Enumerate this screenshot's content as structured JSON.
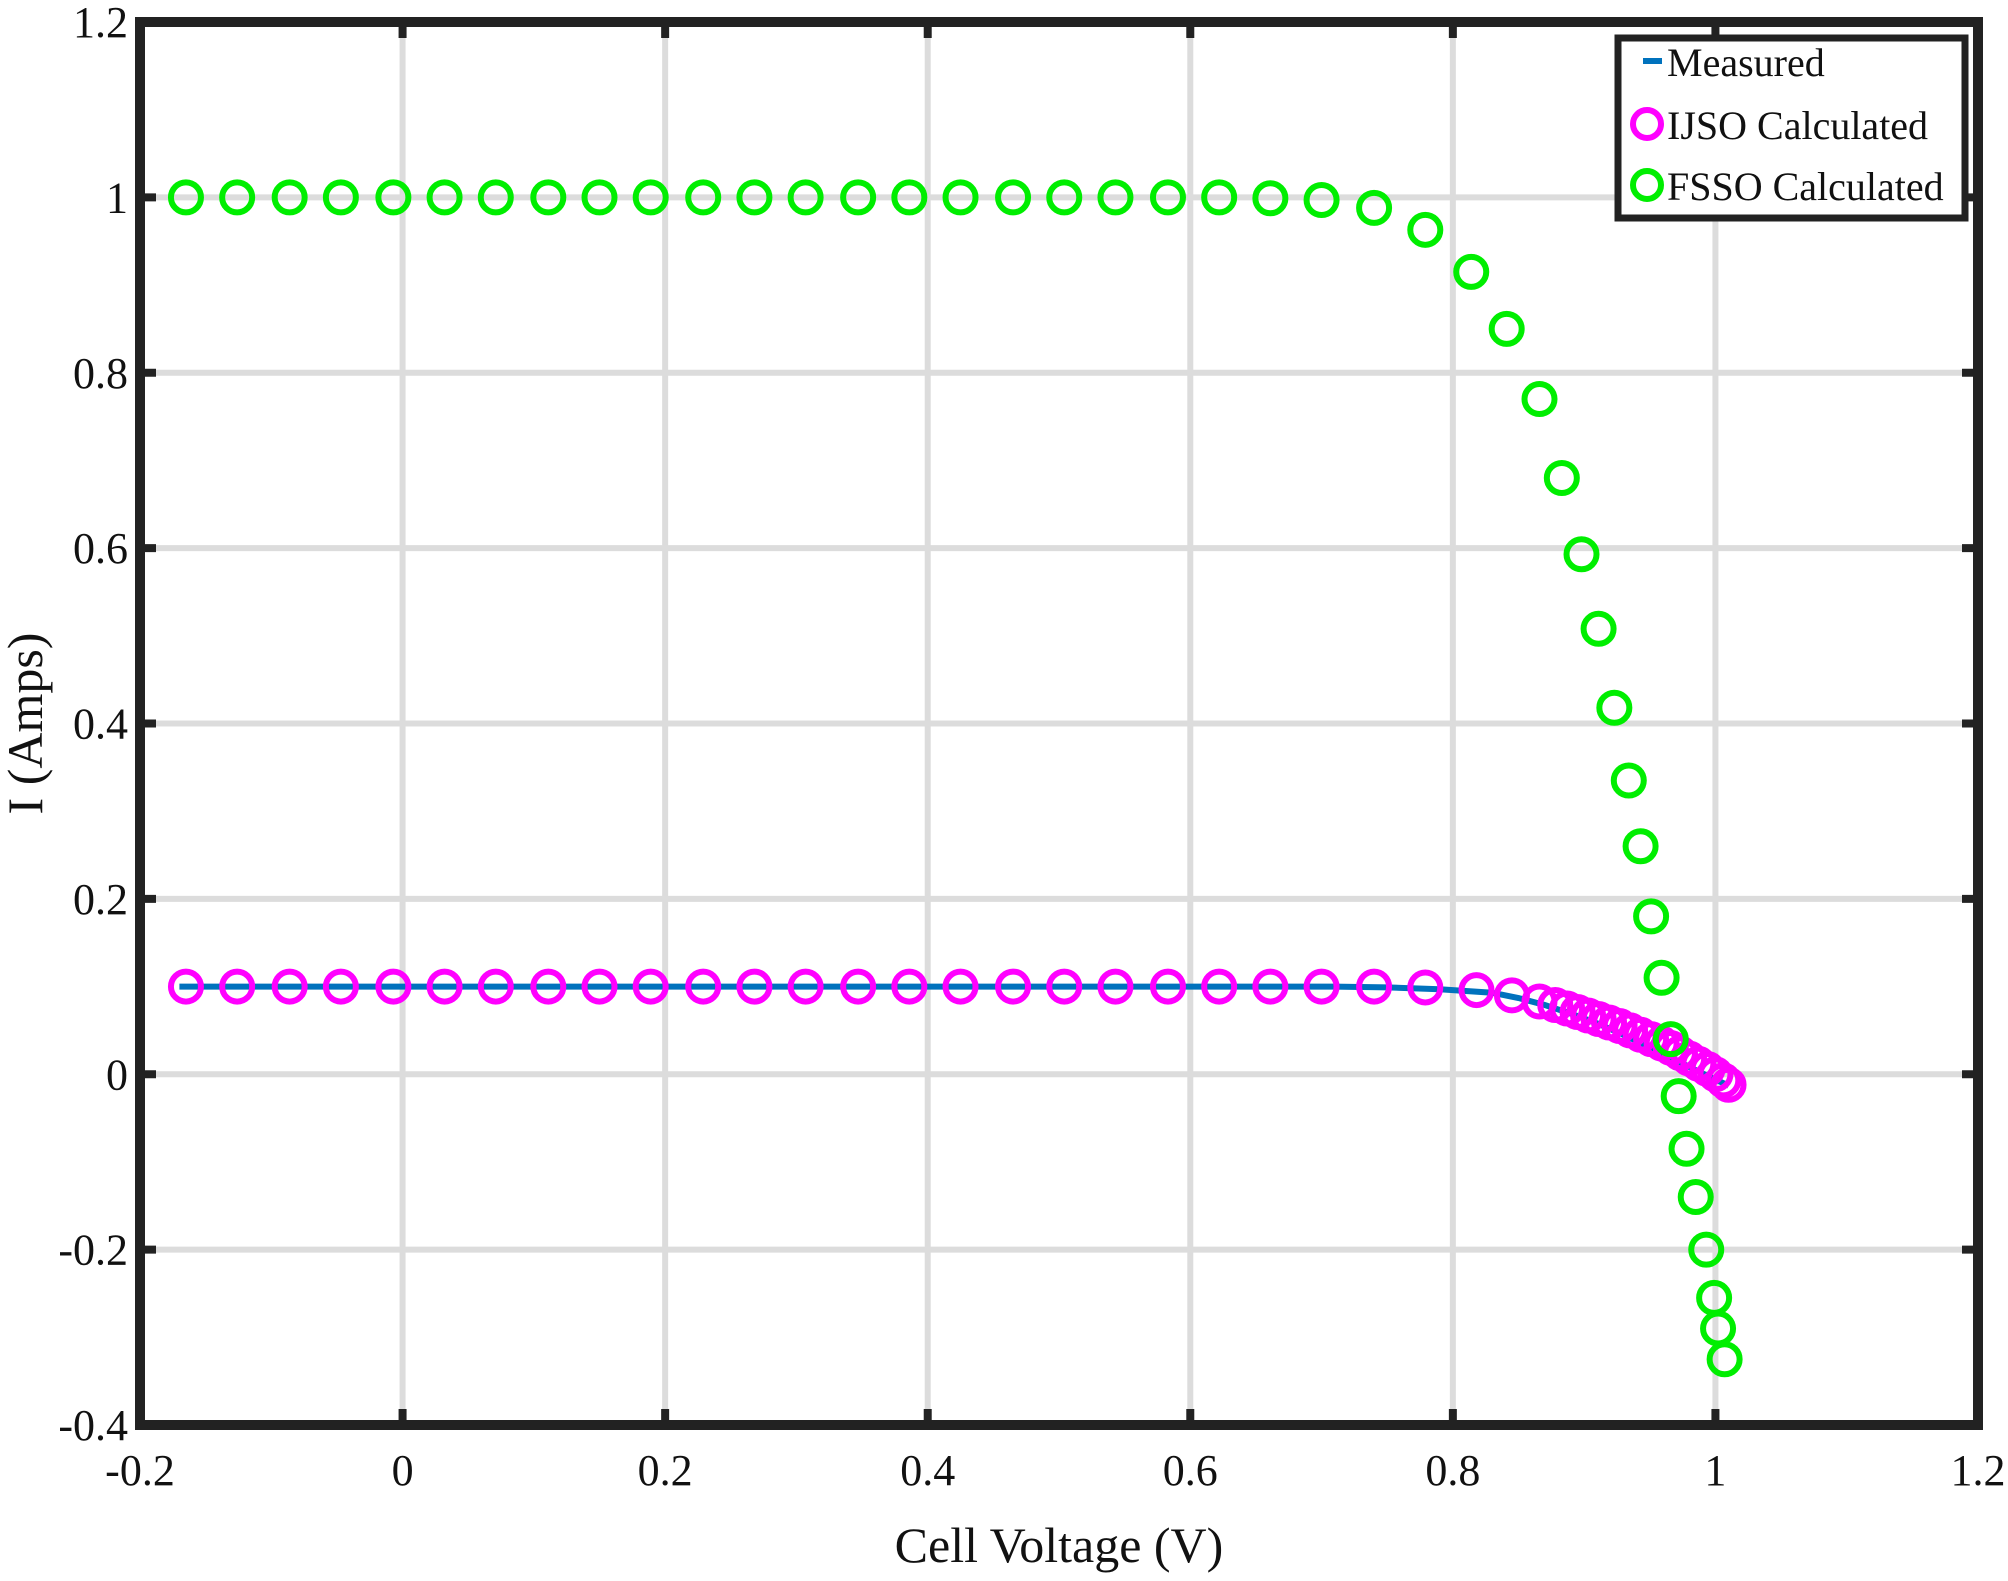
{
  "chart_data": {
    "type": "scatter",
    "xlabel": "Cell Voltage (V)",
    "ylabel": "I (Amps)",
    "xlim": [
      -0.2,
      1.2
    ],
    "ylim": [
      -0.4,
      1.2
    ],
    "xticks": [
      -0.2,
      0,
      0.2,
      0.4,
      0.6,
      0.8,
      1,
      1.2
    ],
    "yticks": [
      -0.4,
      -0.2,
      0,
      0.2,
      0.4,
      0.6,
      0.8,
      1,
      1.2
    ],
    "xtick_labels": [
      "-0.2",
      "0",
      "0.2",
      "0.4",
      "0.6",
      "0.8",
      "1",
      "1.2"
    ],
    "ytick_labels": [
      "-0.4",
      "-0.2",
      "0",
      "0.2",
      "0.4",
      "0.6",
      "0.8",
      "1",
      "1.2"
    ],
    "grid": true,
    "legend_position": "top-right",
    "series": [
      {
        "name": "Measured",
        "style": "line",
        "color": "#0072BD",
        "x": [
          -0.17,
          -0.13,
          -0.09,
          -0.05,
          -0.01,
          0.03,
          0.07,
          0.11,
          0.15,
          0.19,
          0.23,
          0.27,
          0.31,
          0.35,
          0.39,
          0.43,
          0.47,
          0.51,
          0.55,
          0.59,
          0.63,
          0.67,
          0.71,
          0.75,
          0.79,
          0.83,
          0.85,
          0.87,
          0.89,
          0.91,
          0.93,
          0.95,
          0.97,
          0.99,
          1.01
        ],
        "y": [
          0.1,
          0.1,
          0.1,
          0.1,
          0.1,
          0.1,
          0.1,
          0.1,
          0.1,
          0.1,
          0.1,
          0.1,
          0.1,
          0.1,
          0.1,
          0.1,
          0.1,
          0.1,
          0.1,
          0.1,
          0.1,
          0.1,
          0.1,
          0.099,
          0.097,
          0.093,
          0.087,
          0.079,
          0.069,
          0.058,
          0.045,
          0.031,
          0.016,
          0.001,
          -0.013
        ]
      },
      {
        "name": "IJSO Calculated",
        "style": "marker",
        "color": "#FF00FF",
        "x": [
          -0.165,
          -0.126,
          -0.086,
          -0.047,
          -0.007,
          0.032,
          0.071,
          0.111,
          0.15,
          0.189,
          0.229,
          0.268,
          0.307,
          0.347,
          0.386,
          0.425,
          0.465,
          0.504,
          0.543,
          0.583,
          0.622,
          0.661,
          0.7,
          0.74,
          0.779,
          0.818,
          0.845,
          0.866,
          0.878,
          0.887,
          0.895,
          0.903,
          0.911,
          0.919,
          0.927,
          0.935,
          0.943,
          0.951,
          0.959,
          0.966,
          0.973,
          0.98,
          0.987,
          0.994,
          1.0,
          1.006,
          1.01
        ],
        "y": [
          0.1,
          0.1,
          0.1,
          0.1,
          0.1,
          0.1,
          0.1,
          0.1,
          0.1,
          0.1,
          0.1,
          0.1,
          0.1,
          0.1,
          0.1,
          0.1,
          0.1,
          0.1,
          0.1,
          0.1,
          0.1,
          0.1,
          0.1,
          0.1,
          0.099,
          0.096,
          0.09,
          0.083,
          0.079,
          0.075,
          0.071,
          0.067,
          0.063,
          0.059,
          0.055,
          0.05,
          0.045,
          0.04,
          0.035,
          0.03,
          0.024,
          0.018,
          0.012,
          0.006,
          0.0,
          -0.007,
          -0.012
        ]
      },
      {
        "name": "FSSO Calculated",
        "style": "marker",
        "color": "#00EE00",
        "x": [
          -0.165,
          -0.126,
          -0.086,
          -0.047,
          -0.007,
          0.032,
          0.071,
          0.111,
          0.15,
          0.189,
          0.229,
          0.268,
          0.307,
          0.347,
          0.386,
          0.425,
          0.465,
          0.504,
          0.543,
          0.583,
          0.622,
          0.661,
          0.7,
          0.74,
          0.779,
          0.814,
          0.841,
          0.866,
          0.883,
          0.898,
          0.911,
          0.923,
          0.934,
          0.943,
          0.951,
          0.959,
          0.966,
          0.972,
          0.978,
          0.985,
          0.993,
          0.999,
          1.002,
          1.007
        ],
        "y": [
          1.0,
          1.0,
          1.0,
          1.0,
          1.0,
          1.0,
          1.0,
          1.0,
          1.0,
          1.0,
          1.0,
          1.0,
          1.0,
          1.0,
          1.0,
          1.0,
          1.0,
          1.0,
          1.0,
          1.0,
          1.0,
          0.999,
          0.997,
          0.988,
          0.963,
          0.915,
          0.85,
          0.77,
          0.68,
          0.593,
          0.508,
          0.418,
          0.335,
          0.26,
          0.18,
          0.11,
          0.04,
          -0.025,
          -0.085,
          -0.14,
          -0.2,
          -0.255,
          -0.29,
          -0.325
        ]
      }
    ]
  }
}
